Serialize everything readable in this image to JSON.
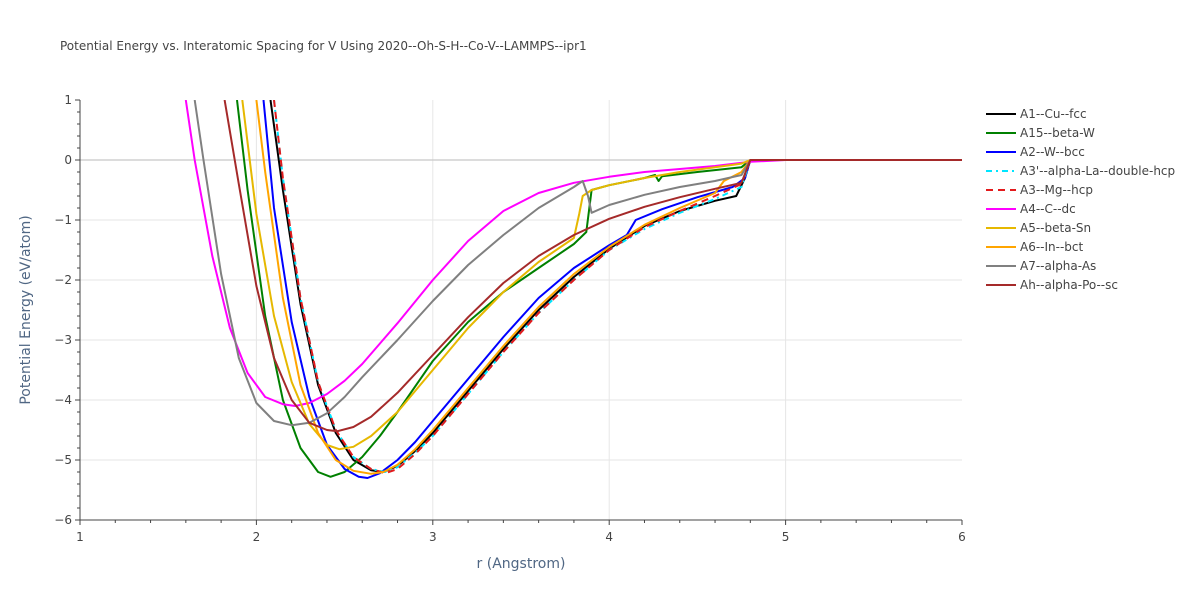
{
  "chart_data": {
    "type": "line",
    "title": "Potential Energy vs. Interatomic Spacing for V Using 2020--Oh-S-H--Co-V--LAMMPS--ipr1",
    "xlabel": "r (Angstrom)",
    "ylabel": "Potential Energy (eV/atom)",
    "xlim": [
      1,
      6
    ],
    "ylim": [
      -6,
      1
    ],
    "xticks": [
      1,
      2,
      3,
      4,
      5,
      6
    ],
    "xtick_labels": [
      "1",
      "2",
      "3",
      "4",
      "5",
      "6"
    ],
    "yticks": [
      1,
      0,
      -1,
      -2,
      -3,
      -4,
      -5,
      -6
    ],
    "ytick_labels": [
      "1",
      "0",
      "−1",
      "−2",
      "−3",
      "−4",
      "−5",
      "−6"
    ],
    "grid": true,
    "legend_position": "right",
    "series": [
      {
        "name": "A1--Cu--fcc",
        "color": "#000000",
        "dash": "solid",
        "x": [
          2.08,
          2.15,
          2.25,
          2.35,
          2.45,
          2.55,
          2.65,
          2.72,
          2.8,
          2.9,
          3.0,
          3.2,
          3.4,
          3.6,
          3.8,
          4.0,
          4.2,
          4.4,
          4.6,
          4.72,
          4.77,
          4.8,
          5.0,
          5.5,
          6.0
        ],
        "y": [
          1.0,
          -0.5,
          -2.4,
          -3.75,
          -4.55,
          -5.0,
          -5.17,
          -5.2,
          -5.1,
          -4.85,
          -4.55,
          -3.85,
          -3.15,
          -2.5,
          -1.95,
          -1.48,
          -1.1,
          -0.85,
          -0.68,
          -0.6,
          -0.3,
          0.0,
          0.0,
          0.0,
          0.0
        ]
      },
      {
        "name": "A15--beta-W",
        "color": "#008000",
        "dash": "solid",
        "x": [
          1.89,
          1.95,
          2.05,
          2.15,
          2.25,
          2.35,
          2.42,
          2.5,
          2.6,
          2.7,
          2.8,
          3.0,
          3.2,
          3.4,
          3.6,
          3.8,
          3.87,
          3.9,
          4.0,
          4.2,
          4.26,
          4.28,
          4.3,
          4.5,
          4.75,
          4.8,
          5.0,
          6.0
        ],
        "y": [
          1.0,
          -0.5,
          -2.6,
          -4.0,
          -4.8,
          -5.2,
          -5.28,
          -5.2,
          -4.95,
          -4.6,
          -4.2,
          -3.35,
          -2.7,
          -2.2,
          -1.8,
          -1.4,
          -1.2,
          -0.5,
          -0.42,
          -0.3,
          -0.25,
          -0.35,
          -0.27,
          -0.2,
          -0.12,
          0.0,
          0.0,
          0.0
        ]
      },
      {
        "name": "A2--W--bcc",
        "color": "#0000ff",
        "dash": "solid",
        "x": [
          2.04,
          2.1,
          2.2,
          2.3,
          2.4,
          2.5,
          2.58,
          2.63,
          2.7,
          2.8,
          2.9,
          3.0,
          3.2,
          3.4,
          3.6,
          3.8,
          4.0,
          4.1,
          4.15,
          4.3,
          4.5,
          4.7,
          4.77,
          4.8,
          5.0,
          6.0
        ],
        "y": [
          1.0,
          -0.8,
          -2.7,
          -3.95,
          -4.75,
          -5.15,
          -5.28,
          -5.3,
          -5.22,
          -5.0,
          -4.7,
          -4.35,
          -3.65,
          -2.95,
          -2.3,
          -1.8,
          -1.42,
          -1.25,
          -1.0,
          -0.82,
          -0.62,
          -0.45,
          -0.3,
          0.0,
          0.0,
          0.0
        ]
      },
      {
        "name": "A3'--alpha-La--double-hcp",
        "color": "#00e5ff",
        "dash": "6,4,2,4",
        "x": [
          2.1,
          2.15,
          2.25,
          2.35,
          2.45,
          2.55,
          2.65,
          2.73,
          2.8,
          2.9,
          3.0,
          3.2,
          3.4,
          3.6,
          3.8,
          4.0,
          4.2,
          4.4,
          4.6,
          4.75,
          4.8,
          5.0,
          6.0
        ],
        "y": [
          1.0,
          -0.3,
          -2.3,
          -3.7,
          -4.5,
          -4.95,
          -5.15,
          -5.2,
          -5.12,
          -4.88,
          -4.6,
          -3.9,
          -3.2,
          -2.55,
          -2.0,
          -1.5,
          -1.15,
          -0.88,
          -0.65,
          -0.45,
          0.0,
          0.0,
          0.0
        ]
      },
      {
        "name": "A3--Mg--hcp",
        "color": "#e31a1c",
        "dash": "7,5",
        "x": [
          2.1,
          2.15,
          2.25,
          2.35,
          2.45,
          2.55,
          2.65,
          2.73,
          2.8,
          2.9,
          3.0,
          3.2,
          3.4,
          3.6,
          3.8,
          4.0,
          4.2,
          4.4,
          4.6,
          4.75,
          4.8,
          5.0,
          6.0
        ],
        "y": [
          1.0,
          -0.3,
          -2.3,
          -3.7,
          -4.5,
          -4.95,
          -5.15,
          -5.22,
          -5.15,
          -4.9,
          -4.6,
          -3.9,
          -3.2,
          -2.55,
          -2.0,
          -1.5,
          -1.12,
          -0.85,
          -0.6,
          -0.4,
          0.0,
          0.0,
          0.0
        ]
      },
      {
        "name": "A4--C--dc",
        "color": "#ff00ff",
        "dash": "solid",
        "x": [
          1.6,
          1.65,
          1.75,
          1.85,
          1.95,
          2.05,
          2.15,
          2.22,
          2.3,
          2.4,
          2.5,
          2.6,
          2.8,
          3.0,
          3.2,
          3.4,
          3.6,
          3.8,
          4.0,
          4.2,
          4.4,
          4.6,
          4.8,
          5.0,
          6.0
        ],
        "y": [
          1.0,
          0.0,
          -1.6,
          -2.8,
          -3.55,
          -3.95,
          -4.07,
          -4.1,
          -4.05,
          -3.9,
          -3.68,
          -3.4,
          -2.72,
          -2.0,
          -1.35,
          -0.85,
          -0.55,
          -0.38,
          -0.28,
          -0.2,
          -0.15,
          -0.1,
          -0.03,
          0.0,
          0.0
        ]
      },
      {
        "name": "A5--beta-Sn",
        "color": "#e6b800",
        "dash": "solid",
        "x": [
          1.92,
          2.0,
          2.1,
          2.2,
          2.3,
          2.4,
          2.47,
          2.55,
          2.65,
          2.8,
          3.0,
          3.2,
          3.4,
          3.6,
          3.8,
          3.83,
          3.85,
          3.9,
          4.0,
          4.2,
          4.4,
          4.6,
          4.75,
          4.8,
          5.0,
          6.0
        ],
        "y": [
          1.0,
          -0.9,
          -2.6,
          -3.7,
          -4.4,
          -4.75,
          -4.82,
          -4.78,
          -4.6,
          -4.2,
          -3.5,
          -2.8,
          -2.2,
          -1.7,
          -1.3,
          -0.9,
          -0.6,
          -0.5,
          -0.42,
          -0.3,
          -0.2,
          -0.12,
          -0.06,
          0.0,
          0.0,
          0.0
        ]
      },
      {
        "name": "A6--In--bct",
        "color": "#ffa500",
        "dash": "solid",
        "x": [
          2.0,
          2.05,
          2.15,
          2.25,
          2.35,
          2.45,
          2.55,
          2.65,
          2.72,
          2.8,
          2.9,
          3.0,
          3.2,
          3.4,
          3.6,
          3.8,
          4.0,
          4.2,
          4.4,
          4.6,
          4.65,
          4.75,
          4.8,
          5.0,
          6.0
        ],
        "y": [
          1.0,
          -0.2,
          -2.3,
          -3.75,
          -4.55,
          -5.0,
          -5.18,
          -5.23,
          -5.2,
          -5.08,
          -4.82,
          -4.5,
          -3.8,
          -3.1,
          -2.45,
          -1.9,
          -1.45,
          -1.08,
          -0.8,
          -0.55,
          -0.35,
          -0.2,
          0.0,
          0.0,
          0.0
        ]
      },
      {
        "name": "A7--alpha-As",
        "color": "#808080",
        "dash": "solid",
        "x": [
          1.65,
          1.7,
          1.8,
          1.9,
          2.0,
          2.1,
          2.2,
          2.3,
          2.4,
          2.5,
          2.6,
          2.8,
          3.0,
          3.2,
          3.4,
          3.6,
          3.8,
          3.85,
          3.88,
          3.9,
          4.0,
          4.2,
          4.4,
          4.6,
          4.75,
          4.8,
          5.0,
          6.0
        ],
        "y": [
          1.0,
          0.0,
          -1.9,
          -3.3,
          -4.05,
          -4.35,
          -4.42,
          -4.38,
          -4.22,
          -3.95,
          -3.62,
          -3.0,
          -2.35,
          -1.75,
          -1.25,
          -0.8,
          -0.45,
          -0.35,
          -0.6,
          -0.88,
          -0.75,
          -0.58,
          -0.45,
          -0.35,
          -0.25,
          0.0,
          0.0,
          0.0
        ]
      },
      {
        "name": "Ah--alpha-Po--sc",
        "color": "#a52a2a",
        "dash": "solid",
        "x": [
          1.82,
          1.9,
          2.0,
          2.1,
          2.2,
          2.3,
          2.4,
          2.46,
          2.55,
          2.65,
          2.8,
          3.0,
          3.2,
          3.4,
          3.6,
          3.8,
          4.0,
          4.2,
          4.4,
          4.6,
          4.75,
          4.8,
          5.0,
          6.0
        ],
        "y": [
          1.0,
          -0.4,
          -2.1,
          -3.3,
          -4.0,
          -4.38,
          -4.5,
          -4.52,
          -4.45,
          -4.28,
          -3.88,
          -3.25,
          -2.62,
          -2.05,
          -1.6,
          -1.25,
          -0.98,
          -0.78,
          -0.62,
          -0.48,
          -0.38,
          0.0,
          0.0,
          0.0
        ]
      }
    ]
  }
}
